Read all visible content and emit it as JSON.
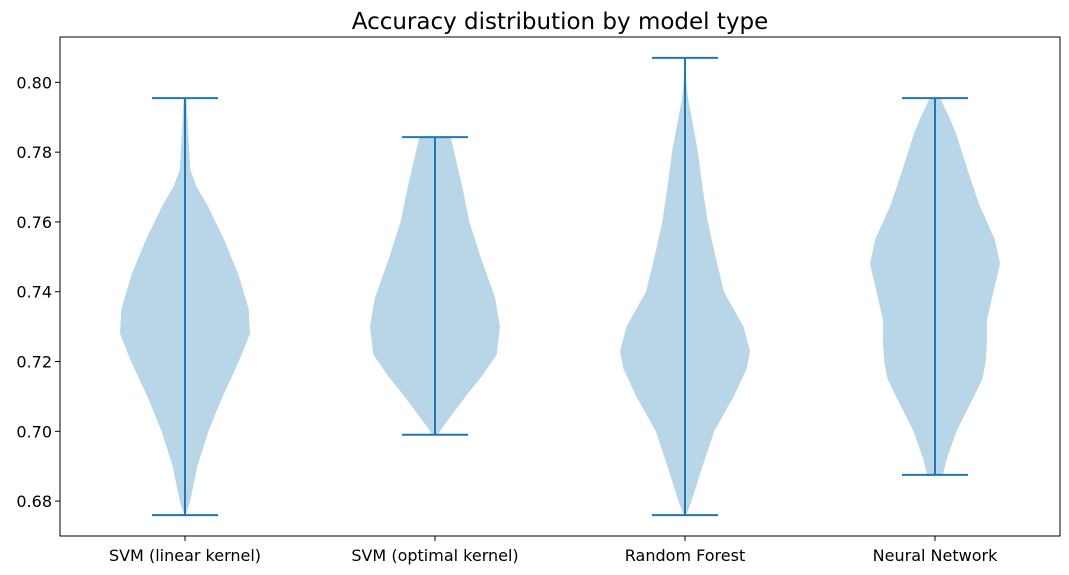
{
  "chart_data": {
    "type": "violin",
    "title": "Accuracy distribution by model type",
    "xlabel": "",
    "ylabel": "",
    "categories": [
      "SVM (linear kernel)",
      "SVM (optimal kernel)",
      "Random Forest",
      "Neural Network"
    ],
    "ylim": [
      0.67,
      0.813
    ],
    "yticks": [
      0.68,
      0.7,
      0.72,
      0.74,
      0.76,
      0.78,
      0.8
    ],
    "ytick_labels": [
      "0.68",
      "0.70",
      "0.72",
      "0.74",
      "0.76",
      "0.78",
      "0.80"
    ],
    "grid": false,
    "legend": "none",
    "colors": {
      "body": "#b9d5e8",
      "line": "#1f77b4",
      "axes": "#000000"
    },
    "series": [
      {
        "min": 0.676,
        "max": 0.7955,
        "profile": [
          [
            0.676,
            0.01
          ],
          [
            0.68,
            0.08
          ],
          [
            0.69,
            0.19
          ],
          [
            0.7,
            0.36
          ],
          [
            0.71,
            0.58
          ],
          [
            0.72,
            0.83
          ],
          [
            0.728,
            1.0
          ],
          [
            0.735,
            0.98
          ],
          [
            0.745,
            0.82
          ],
          [
            0.755,
            0.6
          ],
          [
            0.765,
            0.34
          ],
          [
            0.77,
            0.18
          ],
          [
            0.775,
            0.08
          ],
          [
            0.785,
            0.05
          ],
          [
            0.7955,
            0.02
          ]
        ]
      },
      {
        "min": 0.699,
        "max": 0.7843,
        "profile": [
          [
            0.699,
            0.04
          ],
          [
            0.702,
            0.15
          ],
          [
            0.71,
            0.47
          ],
          [
            0.716,
            0.73
          ],
          [
            0.722,
            0.95
          ],
          [
            0.73,
            1.0
          ],
          [
            0.738,
            0.93
          ],
          [
            0.75,
            0.7
          ],
          [
            0.76,
            0.53
          ],
          [
            0.77,
            0.42
          ],
          [
            0.778,
            0.32
          ],
          [
            0.7843,
            0.24
          ]
        ]
      },
      {
        "min": 0.676,
        "max": 0.807,
        "profile": [
          [
            0.676,
            0.02
          ],
          [
            0.68,
            0.1
          ],
          [
            0.69,
            0.27
          ],
          [
            0.7,
            0.45
          ],
          [
            0.71,
            0.75
          ],
          [
            0.718,
            0.95
          ],
          [
            0.723,
            1.0
          ],
          [
            0.73,
            0.9
          ],
          [
            0.74,
            0.6
          ],
          [
            0.75,
            0.47
          ],
          [
            0.76,
            0.35
          ],
          [
            0.77,
            0.27
          ],
          [
            0.78,
            0.2
          ],
          [
            0.79,
            0.1
          ],
          [
            0.795,
            0.05
          ],
          [
            0.8,
            0.02
          ],
          [
            0.807,
            0.01
          ]
        ]
      },
      {
        "min": 0.6875,
        "max": 0.7955,
        "profile": [
          [
            0.6875,
            0.12
          ],
          [
            0.692,
            0.18
          ],
          [
            0.7,
            0.33
          ],
          [
            0.71,
            0.6
          ],
          [
            0.715,
            0.73
          ],
          [
            0.72,
            0.78
          ],
          [
            0.725,
            0.8
          ],
          [
            0.732,
            0.8
          ],
          [
            0.74,
            0.9
          ],
          [
            0.748,
            1.0
          ],
          [
            0.755,
            0.92
          ],
          [
            0.765,
            0.68
          ],
          [
            0.775,
            0.5
          ],
          [
            0.785,
            0.33
          ],
          [
            0.79,
            0.22
          ],
          [
            0.7955,
            0.08
          ]
        ]
      }
    ]
  }
}
